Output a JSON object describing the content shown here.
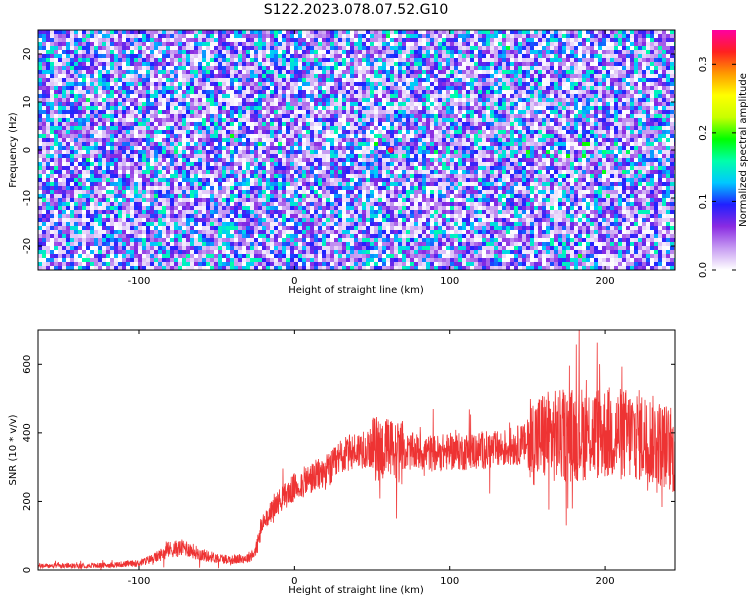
{
  "title": "S122.2023.078.07.52.G10",
  "chart_data": [
    {
      "type": "heatmap",
      "xlabel": "Height of straight line (km)",
      "ylabel": "Frequency (Hz)",
      "xlim": [
        -165,
        245
      ],
      "ylim": [
        -25,
        25
      ],
      "xticks": [
        -100,
        0,
        100,
        200
      ],
      "yticks": [
        -20,
        -10,
        0,
        10,
        20
      ],
      "colorbar": {
        "label": "Normalized spectral amplitude",
        "range": [
          0,
          0.35
        ],
        "ticks": [
          "0.0",
          "0.1",
          "0.2",
          "0.3"
        ],
        "colormap": [
          "#ffffff",
          "#c79cf2",
          "#8a2be2",
          "#2020ff",
          "#00c8ff",
          "#00ffaa",
          "#00ff00",
          "#c8ff00",
          "#ffff00",
          "#ff9a00",
          "#ff2020",
          "#ff00a0"
        ]
      },
      "peak": {
        "x": 62,
        "y": 0,
        "value": 0.33
      },
      "grid": false
    },
    {
      "type": "line",
      "xlabel": "Height of straight line (km)",
      "ylabel": "SNR (10 * v/v)",
      "xlim": [
        -165,
        245
      ],
      "ylim": [
        0,
        700
      ],
      "xticks": [
        -100,
        0,
        100,
        200
      ],
      "yticks": [
        0,
        200,
        400,
        600
      ],
      "color": "#ee3333",
      "grid": false,
      "series": [
        {
          "x": [
            -165,
            -140,
            -120,
            -100,
            -90,
            -80,
            -70,
            -60,
            -50,
            -40,
            -30,
            -25,
            -20,
            -10,
            0,
            10,
            20,
            25,
            30,
            40,
            50,
            60,
            70,
            80,
            90,
            100,
            110,
            120,
            130,
            140,
            150,
            160,
            170,
            180,
            190,
            200,
            210,
            220,
            230,
            240,
            245
          ],
          "values": [
            12,
            12,
            14,
            20,
            35,
            60,
            65,
            45,
            35,
            30,
            35,
            55,
            140,
            200,
            240,
            265,
            285,
            300,
            330,
            350,
            355,
            350,
            345,
            345,
            340,
            345,
            345,
            350,
            350,
            360,
            370,
            390,
            390,
            395,
            400,
            400,
            395,
            395,
            380,
            360,
            330
          ]
        }
      ]
    }
  ]
}
